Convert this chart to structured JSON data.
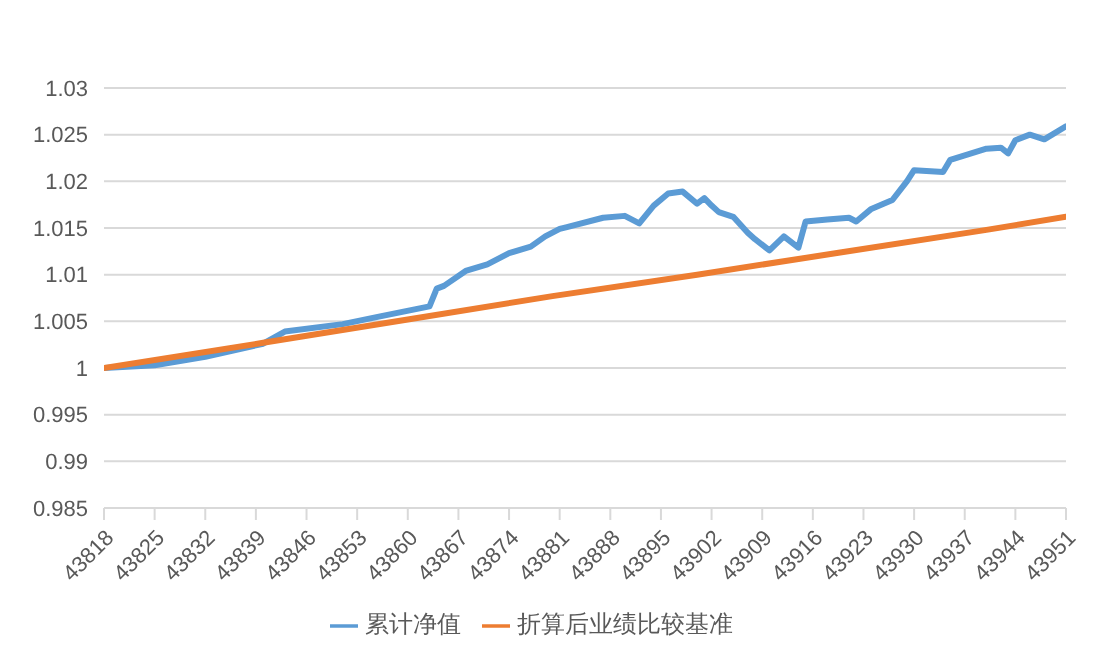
{
  "chart_data": {
    "type": "line",
    "xlim": [
      43818,
      43951
    ],
    "xticks": [
      43818,
      43825,
      43832,
      43839,
      43846,
      43853,
      43860,
      43867,
      43874,
      43881,
      43888,
      43895,
      43902,
      43909,
      43916,
      43923,
      43930,
      43937,
      43944,
      43951
    ],
    "ylim": [
      0.985,
      1.03
    ],
    "yticks": [
      0.985,
      0.99,
      0.995,
      1,
      1.005,
      1.01,
      1.015,
      1.02,
      1.025,
      1.03
    ],
    "grid": "y",
    "legend": "bottom",
    "marker": "none",
    "line_style": "solid",
    "series": [
      {
        "name": "累计净值",
        "color": "#5b9bd5",
        "x": [
          43818,
          43825,
          43832,
          43840,
          43843,
          43851,
          43856,
          43863,
          43864,
          43865,
          43868,
          43871,
          43874,
          43877,
          43879,
          43881,
          43882,
          43887,
          43890,
          43892,
          43894,
          43896,
          43898,
          43900,
          43901,
          43902,
          43903,
          43905,
          43907,
          43908,
          43910,
          43912,
          43914,
          43915,
          43918,
          43921,
          43922,
          43924,
          43927,
          43929,
          43930,
          43934,
          43935,
          43940,
          43942,
          43943,
          43944,
          43946,
          43948,
          43951
        ],
        "values": [
          1.0,
          1.0003,
          1.0012,
          1.0026,
          1.0039,
          1.0047,
          1.0055,
          1.0066,
          1.0085,
          1.0088,
          1.0104,
          1.0111,
          1.0123,
          1.013,
          1.0141,
          1.0149,
          1.0151,
          1.0161,
          1.0163,
          1.0155,
          1.0174,
          1.0187,
          1.0189,
          1.0176,
          1.0182,
          1.0174,
          1.0167,
          1.0162,
          1.0145,
          1.0138,
          1.0126,
          1.0141,
          1.0129,
          1.0157,
          1.0159,
          1.0161,
          1.0157,
          1.017,
          1.018,
          1.02,
          1.0212,
          1.021,
          1.0223,
          1.0235,
          1.0236,
          1.023,
          1.0244,
          1.025,
          1.0245,
          1.0259
        ]
      },
      {
        "name": "折算后业绩比较基准",
        "color": "#ed7d31",
        "x": [
          43818,
          43840,
          43860,
          43880,
          43900,
          43920,
          43940,
          43951
        ],
        "values": [
          1.0,
          1.0027,
          1.0052,
          1.0077,
          1.01,
          1.0124,
          1.0148,
          1.0162
        ]
      }
    ]
  }
}
